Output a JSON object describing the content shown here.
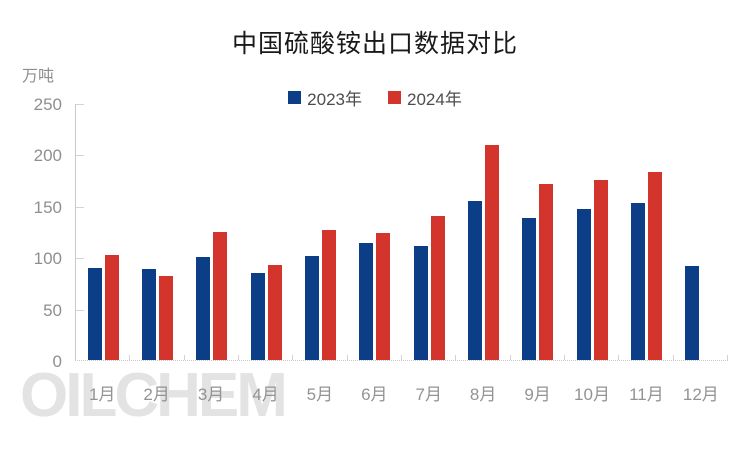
{
  "title": "中国硫酸铵出口数据对比",
  "y_axis": {
    "unit": "万吨",
    "ticks": [
      0,
      50,
      100,
      150,
      200,
      250
    ]
  },
  "watermark": "OILCHEM",
  "colors": {
    "series_2023": "#0b3e87",
    "series_2024": "#d3342b"
  },
  "chart_data": {
    "type": "bar",
    "title": "中国硫酸铵出口数据对比",
    "ylabel": "万吨",
    "ylim": [
      0,
      250
    ],
    "grid": false,
    "legend_position": "top",
    "categories": [
      "1月",
      "2月",
      "3月",
      "4月",
      "5月",
      "6月",
      "7月",
      "8月",
      "9月",
      "10月",
      "11月",
      "12月"
    ],
    "series": [
      {
        "name": "2023年",
        "color": "#0b3e87",
        "values": [
          90,
          89,
          101,
          85,
          102,
          114,
          111,
          155,
          139,
          147,
          153,
          92
        ]
      },
      {
        "name": "2024年",
        "color": "#d3342b",
        "values": [
          103,
          82,
          125,
          93,
          127,
          124,
          141,
          210,
          172,
          176,
          184,
          null
        ]
      }
    ]
  }
}
